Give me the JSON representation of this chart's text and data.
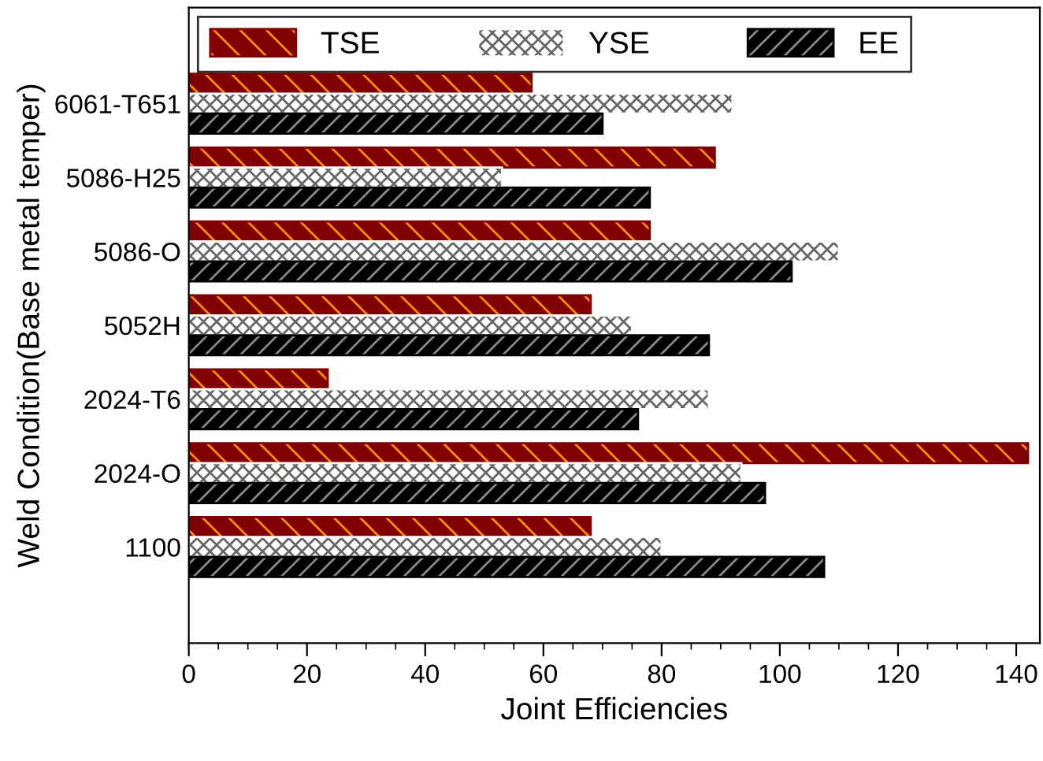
{
  "chart_data": {
    "type": "bar",
    "orientation": "horizontal",
    "categories": [
      "6061-T651",
      "5086-H25",
      "5086-O",
      "5052H",
      "2024-T6",
      "2024-O",
      "1100"
    ],
    "series": [
      {
        "name": "TSE",
        "color": "#800000",
        "values": [
          58,
          89,
          78,
          68,
          23.5,
          142,
          68
        ]
      },
      {
        "name": "YSE",
        "color": "#ffffff",
        "values": [
          92,
          53,
          110,
          75,
          88,
          93.5,
          80
        ]
      },
      {
        "name": "EE",
        "color": "#000000",
        "values": [
          70,
          78,
          102,
          88,
          76,
          97.5,
          107.5
        ]
      }
    ],
    "xlabel": "Joint Efficiencies",
    "ylabel": "Weld Condition(Base metal temper)",
    "xlim": [
      0,
      144
    ],
    "xticks": [
      0,
      20,
      40,
      60,
      80,
      100,
      120,
      140
    ],
    "grid": false,
    "legend": "top"
  }
}
